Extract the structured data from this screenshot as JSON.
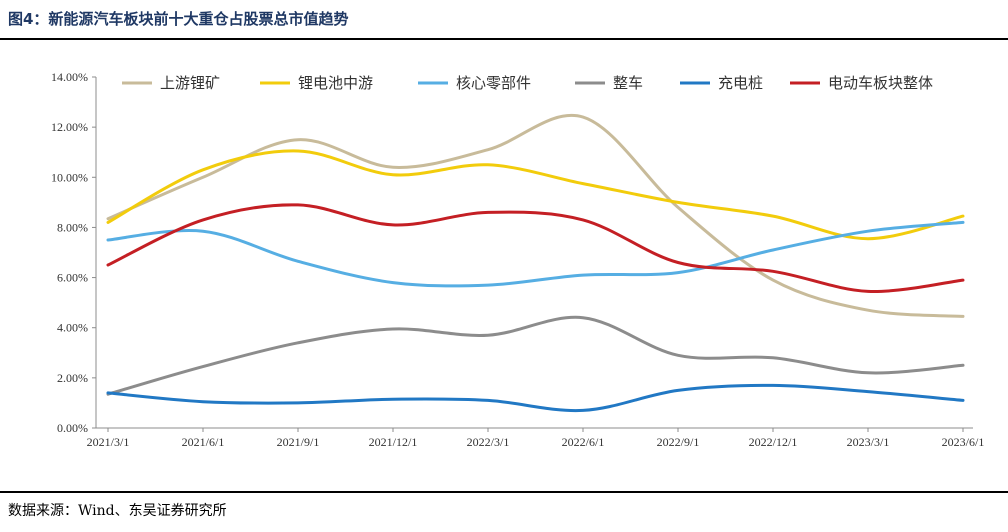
{
  "figure": {
    "title": "图4：新能源汽车板块前十大重仓占股票总市值趋势",
    "source": "数据来源：Wind、东吴证券研究所"
  },
  "chart_data": {
    "type": "line",
    "title": "新能源汽车板块前十大重仓占股票总市值趋势",
    "x": [
      "2021/3/1",
      "2021/6/1",
      "2021/9/1",
      "2021/12/1",
      "2022/3/1",
      "2022/6/1",
      "2022/9/1",
      "2022/12/1",
      "2023/3/1",
      "2023/6/1"
    ],
    "xlabel": "",
    "ylabel": "",
    "ylim": [
      0,
      14
    ],
    "yticks": [
      "0.00%",
      "2.00%",
      "4.00%",
      "6.00%",
      "8.00%",
      "10.00%",
      "12.00%",
      "14.00%"
    ],
    "legend_position": "top",
    "grid": false,
    "series": [
      {
        "name": "上游锂矿",
        "color": "#c8bb9a",
        "values": [
          8.35,
          10.0,
          11.5,
          10.4,
          11.1,
          12.4,
          8.8,
          5.9,
          4.7,
          4.45
        ]
      },
      {
        "name": "锂电池中游",
        "color": "#f2cc0c",
        "values": [
          8.2,
          10.3,
          11.05,
          10.1,
          10.5,
          9.75,
          9.0,
          8.45,
          7.55,
          8.45
        ]
      },
      {
        "name": "核心零部件",
        "color": "#56aee3",
        "values": [
          7.5,
          7.85,
          6.65,
          5.8,
          5.7,
          6.1,
          6.2,
          7.1,
          7.85,
          8.2
        ]
      },
      {
        "name": "整车",
        "color": "#8c8c8c",
        "values": [
          1.35,
          2.45,
          3.4,
          3.95,
          3.7,
          4.4,
          2.9,
          2.8,
          2.2,
          2.5
        ]
      },
      {
        "name": "充电桩",
        "color": "#2178c4",
        "values": [
          1.4,
          1.05,
          1.0,
          1.15,
          1.1,
          0.7,
          1.5,
          1.7,
          1.45,
          1.1
        ]
      },
      {
        "name": "电动车板块整体",
        "color": "#c41f24",
        "values": [
          6.5,
          8.3,
          8.9,
          8.1,
          8.6,
          8.3,
          6.6,
          6.25,
          5.45,
          5.9
        ]
      }
    ]
  }
}
